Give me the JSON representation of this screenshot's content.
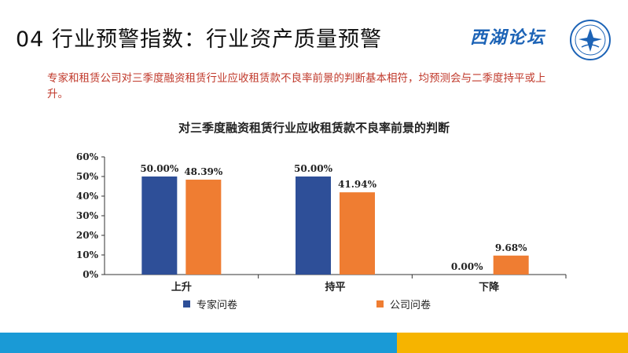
{
  "slide": {
    "title": "04 行业预警指数：行业资产质量预警",
    "summary": "专家和租赁公司对三季度融资租赁行业应收租赁款不良率前景的判断基本相符，均预测会与二季度持平或上升。"
  },
  "logo": {
    "text": "西湖论坛"
  },
  "colors": {
    "expert": "#2e4f98",
    "company": "#ef7d32",
    "footer_blue": "#1a9ad6",
    "footer_yellow": "#f6b400"
  },
  "chart_data": {
    "type": "bar",
    "title": "对三季度融资租赁行业应收租赁款不良率前景的判断",
    "categories": [
      "上升",
      "持平",
      "下降"
    ],
    "series": [
      {
        "name": "专家问卷",
        "values": [
          50.0,
          50.0,
          0.0
        ],
        "labels": [
          "50.00%",
          "50.00%",
          "0.00%"
        ]
      },
      {
        "name": "公司问卷",
        "values": [
          48.39,
          41.94,
          9.68
        ],
        "labels": [
          "48.39%",
          "41.94%",
          "9.68%"
        ]
      }
    ],
    "yticks": [
      "0%",
      "10%",
      "20%",
      "30%",
      "40%",
      "50%",
      "60%"
    ],
    "ylim": [
      0,
      60
    ],
    "grid": false,
    "legend_position": "bottom"
  }
}
